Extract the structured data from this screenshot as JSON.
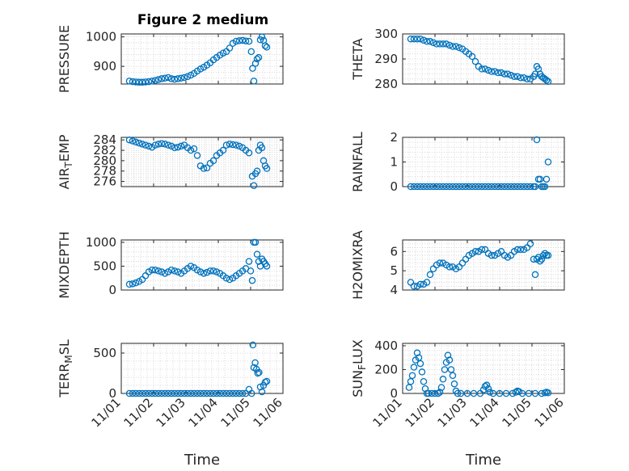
{
  "figure": {
    "title": "Figure 2 medium"
  },
  "colors": {
    "marker": "#0072bd",
    "axes": "#262626",
    "grid": "#d0d0d0"
  },
  "chart_data": [
    {
      "type": "scatter",
      "ylabel": "PRESSURE",
      "xlabel": "",
      "title": "Figure 2 medium",
      "xlim": [
        0,
        5
      ],
      "ylim": [
        840,
        1010
      ],
      "yticks": [
        900,
        1000
      ],
      "show_xticks": false,
      "grid": true,
      "x": [
        0.25,
        0.35,
        0.45,
        0.55,
        0.65,
        0.75,
        0.85,
        0.95,
        1.05,
        1.15,
        1.25,
        1.35,
        1.45,
        1.55,
        1.65,
        1.75,
        1.85,
        1.95,
        2.05,
        2.15,
        2.25,
        2.35,
        2.45,
        2.55,
        2.65,
        2.75,
        2.85,
        2.95,
        3.05,
        3.15,
        3.25,
        3.35,
        3.45,
        3.55,
        3.65,
        3.75,
        3.85,
        3.95,
        4.02,
        4.06,
        4.1,
        4.15,
        4.2,
        4.25,
        4.3,
        4.35,
        4.4,
        4.45,
        4.5
      ],
      "y": [
        850,
        848,
        847,
        846,
        846,
        847,
        848,
        850,
        852,
        855,
        858,
        860,
        862,
        858,
        856,
        858,
        860,
        862,
        865,
        870,
        876,
        884,
        891,
        897,
        904,
        912,
        922,
        930,
        938,
        945,
        950,
        962,
        978,
        985,
        987,
        988,
        986,
        985,
        950,
        893,
        850,
        910,
        925,
        930,
        990,
        1000,
        988,
        970,
        965
      ]
    },
    {
      "type": "scatter",
      "ylabel": "THETA",
      "xlabel": "",
      "xlim": [
        0,
        5
      ],
      "ylim": [
        280,
        300
      ],
      "yticks": [
        280,
        290,
        300
      ],
      "show_xticks": false,
      "grid": true,
      "x": [
        0.25,
        0.35,
        0.45,
        0.55,
        0.65,
        0.75,
        0.85,
        0.95,
        1.05,
        1.15,
        1.25,
        1.35,
        1.45,
        1.55,
        1.65,
        1.75,
        1.85,
        1.95,
        2.05,
        2.15,
        2.25,
        2.35,
        2.45,
        2.55,
        2.65,
        2.75,
        2.85,
        2.95,
        3.05,
        3.15,
        3.25,
        3.35,
        3.45,
        3.55,
        3.65,
        3.75,
        3.85,
        3.95,
        4.05,
        4.1,
        4.15,
        4.2,
        4.25,
        4.3,
        4.35,
        4.4,
        4.45,
        4.5
      ],
      "y": [
        298,
        298,
        298,
        298,
        297.5,
        297,
        297,
        296.5,
        296,
        296,
        296,
        296,
        295.5,
        295,
        295,
        294.5,
        294,
        293,
        292,
        291,
        289,
        287,
        286,
        286,
        285.5,
        285,
        285,
        284.5,
        284.5,
        284,
        284,
        283.5,
        283,
        283,
        282.5,
        282.5,
        282,
        282,
        283,
        284,
        287,
        286,
        284,
        283,
        282.5,
        282,
        281.5,
        281
      ]
    },
    {
      "type": "scatter",
      "ylabel": "AIR_TEMP",
      "xlabel": "",
      "xlim": [
        0,
        5
      ],
      "ylim": [
        275,
        284.5
      ],
      "yticks": [
        276,
        278,
        280,
        282,
        284
      ],
      "show_xticks": false,
      "grid": true,
      "x": [
        0.25,
        0.35,
        0.45,
        0.55,
        0.65,
        0.75,
        0.85,
        0.95,
        1.05,
        1.15,
        1.25,
        1.35,
        1.45,
        1.55,
        1.65,
        1.75,
        1.85,
        1.95,
        2.05,
        2.15,
        2.25,
        2.35,
        2.45,
        2.55,
        2.65,
        2.75,
        2.85,
        2.95,
        3.05,
        3.15,
        3.25,
        3.35,
        3.45,
        3.55,
        3.65,
        3.75,
        3.85,
        3.95,
        4.05,
        4.1,
        4.15,
        4.2,
        4.25,
        4.3,
        4.35,
        4.4,
        4.45,
        4.5
      ],
      "y": [
        284,
        283.8,
        283.6,
        283.4,
        283.2,
        283,
        282.8,
        282.6,
        283,
        283.2,
        283.3,
        283.2,
        283,
        282.8,
        282.5,
        282.6,
        282.8,
        283,
        282.5,
        282,
        282.3,
        281,
        279,
        278.5,
        278.6,
        279.5,
        280,
        281,
        281.5,
        282,
        283,
        283.2,
        283.1,
        283,
        282.8,
        282.5,
        282,
        281.5,
        277,
        275.2,
        277.5,
        278,
        282,
        283,
        282.5,
        280,
        279,
        278.5
      ]
    },
    {
      "type": "scatter",
      "ylabel": "RAINFALL",
      "xlabel": "",
      "xlim": [
        0,
        5
      ],
      "ylim": [
        0,
        2
      ],
      "yticks": [
        0,
        1,
        2
      ],
      "show_xticks": false,
      "grid": true,
      "x": [
        0.25,
        0.35,
        0.45,
        0.55,
        0.65,
        0.75,
        0.85,
        0.95,
        1.05,
        1.15,
        1.25,
        1.35,
        1.45,
        1.55,
        1.65,
        1.75,
        1.85,
        1.95,
        2.05,
        2.15,
        2.25,
        2.35,
        2.45,
        2.55,
        2.65,
        2.75,
        2.85,
        2.95,
        3.05,
        3.15,
        3.25,
        3.35,
        3.45,
        3.55,
        3.65,
        3.75,
        3.85,
        3.95,
        4.05,
        4.1,
        4.15,
        4.2,
        4.25,
        4.3,
        4.35,
        4.4,
        4.45,
        4.5
      ],
      "y": [
        0,
        0,
        0,
        0,
        0,
        0,
        0,
        0,
        0,
        0,
        0,
        0,
        0,
        0,
        0,
        0,
        0,
        0,
        0,
        0,
        0,
        0,
        0,
        0,
        0,
        0,
        0,
        0,
        0,
        0,
        0,
        0,
        0,
        0,
        0,
        0,
        0,
        0,
        0,
        0,
        1.9,
        0.3,
        0.3,
        0,
        0,
        0,
        0.3,
        1
      ]
    },
    {
      "type": "scatter",
      "ylabel": "MIXDEPTH",
      "xlabel": "",
      "xlim": [
        0,
        5
      ],
      "ylim": [
        0,
        1050
      ],
      "yticks": [
        0,
        500,
        1000
      ],
      "show_xticks": false,
      "grid": true,
      "x": [
        0.25,
        0.35,
        0.45,
        0.55,
        0.65,
        0.75,
        0.85,
        0.95,
        1.05,
        1.15,
        1.25,
        1.35,
        1.45,
        1.55,
        1.65,
        1.75,
        1.85,
        1.95,
        2.05,
        2.15,
        2.25,
        2.35,
        2.45,
        2.55,
        2.65,
        2.75,
        2.85,
        2.95,
        3.05,
        3.15,
        3.25,
        3.35,
        3.45,
        3.55,
        3.65,
        3.75,
        3.85,
        3.95,
        4.0,
        4.05,
        4.1,
        4.15,
        4.2,
        4.25,
        4.3,
        4.35,
        4.4,
        4.45,
        4.5
      ],
      "y": [
        120,
        130,
        150,
        180,
        220,
        300,
        380,
        420,
        420,
        400,
        380,
        350,
        380,
        420,
        400,
        380,
        350,
        400,
        450,
        500,
        470,
        420,
        380,
        350,
        370,
        400,
        400,
        380,
        350,
        300,
        250,
        220,
        250,
        300,
        350,
        400,
        450,
        600,
        400,
        200,
        1000,
        1000,
        750,
        600,
        500,
        650,
        600,
        550,
        500
      ]
    },
    {
      "type": "scatter",
      "ylabel": "H2OMIXRA",
      "xlabel": "",
      "xlim": [
        0,
        5
      ],
      "ylim": [
        4,
        6.6
      ],
      "yticks": [
        4,
        5,
        6
      ],
      "show_xticks": false,
      "grid": true,
      "x": [
        0.25,
        0.35,
        0.45,
        0.55,
        0.65,
        0.75,
        0.85,
        0.95,
        1.05,
        1.15,
        1.25,
        1.35,
        1.45,
        1.55,
        1.65,
        1.75,
        1.85,
        1.95,
        2.05,
        2.15,
        2.25,
        2.35,
        2.45,
        2.55,
        2.65,
        2.75,
        2.85,
        2.95,
        3.05,
        3.15,
        3.25,
        3.35,
        3.45,
        3.55,
        3.65,
        3.75,
        3.85,
        3.95,
        4.05,
        4.1,
        4.15,
        4.2,
        4.25,
        4.3,
        4.35,
        4.4,
        4.45,
        4.5
      ],
      "y": [
        4.4,
        4.2,
        4.2,
        4.3,
        4.3,
        4.4,
        4.8,
        5.1,
        5.3,
        5.4,
        5.4,
        5.3,
        5.2,
        5.2,
        5.1,
        5.2,
        5.4,
        5.6,
        5.8,
        5.9,
        6,
        6,
        6.1,
        6.1,
        5.9,
        5.8,
        5.8,
        5.9,
        6,
        5.8,
        5.7,
        5.8,
        6,
        6.1,
        6.1,
        6.1,
        6.2,
        6.4,
        5.6,
        4.8,
        5.6,
        5.7,
        5.5,
        5.6,
        5.8,
        5.9,
        5.8,
        5.8
      ]
    },
    {
      "type": "scatter",
      "ylabel": "TERR_MSL",
      "xlabel": "Time",
      "xlim": [
        0,
        5
      ],
      "ylim": [
        0,
        620
      ],
      "yticks": [
        0,
        500
      ],
      "show_xticks": true,
      "grid": true,
      "xticks": [
        0,
        1,
        2,
        3,
        4,
        5
      ],
      "xticklabels": [
        "11/01",
        "11/02",
        "11/03",
        "11/04",
        "11/05",
        "11/06"
      ],
      "x": [
        0.25,
        0.35,
        0.45,
        0.55,
        0.65,
        0.75,
        0.85,
        0.95,
        1.05,
        1.15,
        1.25,
        1.35,
        1.45,
        1.55,
        1.65,
        1.75,
        1.85,
        1.95,
        2.05,
        2.15,
        2.25,
        2.35,
        2.45,
        2.55,
        2.65,
        2.75,
        2.85,
        2.95,
        3.05,
        3.15,
        3.25,
        3.35,
        3.45,
        3.55,
        3.65,
        3.75,
        3.85,
        3.95,
        4.03,
        4.07,
        4.1,
        4.14,
        4.18,
        4.22,
        4.26,
        4.3,
        4.35,
        4.4,
        4.45,
        4.5
      ],
      "y": [
        0,
        0,
        0,
        0,
        0,
        0,
        0,
        0,
        0,
        0,
        0,
        0,
        0,
        0,
        0,
        0,
        0,
        0,
        0,
        0,
        0,
        0,
        0,
        0,
        0,
        0,
        0,
        0,
        0,
        0,
        0,
        0,
        0,
        0,
        0,
        0,
        0,
        50,
        0,
        600,
        320,
        380,
        300,
        250,
        260,
        80,
        20,
        100,
        140,
        150
      ]
    },
    {
      "type": "scatter",
      "ylabel": "SUN_FLUX",
      "xlabel": "Time",
      "xlim": [
        0,
        5
      ],
      "ylim": [
        0,
        420
      ],
      "yticks": [
        0,
        200,
        400
      ],
      "show_xticks": true,
      "grid": true,
      "xticks": [
        0,
        1,
        2,
        3,
        4,
        5
      ],
      "xticklabels": [
        "11/01",
        "11/02",
        "11/03",
        "11/04",
        "11/05",
        "11/06"
      ],
      "x": [
        0.2,
        0.25,
        0.3,
        0.35,
        0.4,
        0.45,
        0.5,
        0.55,
        0.6,
        0.65,
        0.7,
        0.75,
        0.8,
        0.9,
        1.0,
        1.1,
        1.15,
        1.2,
        1.25,
        1.3,
        1.35,
        1.4,
        1.45,
        1.5,
        1.55,
        1.6,
        1.65,
        1.7,
        1.8,
        2.0,
        2.2,
        2.4,
        2.5,
        2.55,
        2.6,
        2.65,
        2.7,
        2.8,
        3.0,
        3.2,
        3.4,
        3.5,
        3.55,
        3.6,
        3.7,
        3.9,
        4.1,
        4.3,
        4.4,
        4.45,
        4.5
      ],
      "y": [
        50,
        100,
        150,
        220,
        280,
        340,
        300,
        250,
        180,
        100,
        40,
        0,
        0,
        0,
        0,
        0,
        10,
        50,
        120,
        200,
        260,
        320,
        280,
        200,
        150,
        80,
        20,
        0,
        0,
        0,
        0,
        0,
        30,
        60,
        70,
        40,
        10,
        0,
        0,
        0,
        0,
        10,
        20,
        15,
        0,
        0,
        0,
        0,
        5,
        10,
        5
      ]
    }
  ]
}
